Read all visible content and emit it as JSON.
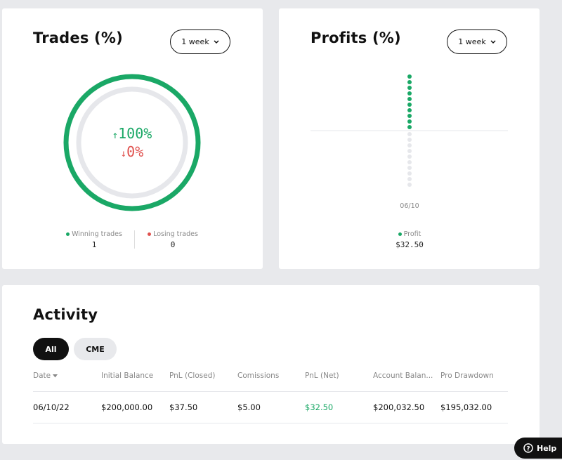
{
  "trades": {
    "title": "Trades (%)",
    "period": "1 week",
    "win_pct": "100%",
    "lose_pct": "0%",
    "legend": [
      {
        "label": "Winning trades",
        "value": 1
      },
      {
        "label": "Losing trades",
        "value": 0
      }
    ]
  },
  "profits": {
    "title": "Profits (%)",
    "period": "1 week",
    "date": "06/10",
    "legend": {
      "label": "Profit",
      "value": "$32.50"
    }
  },
  "activity": {
    "title": "Activity",
    "tabs": [
      "All",
      "CME"
    ],
    "columns": [
      "Date",
      "Initial Balance",
      "PnL (Closed)",
      "Comissions",
      "PnL (Net)",
      "Account Balan...",
      "Pro Drawdown"
    ],
    "rows": [
      [
        "06/10/22",
        "$200,000.00",
        "$37.50",
        "$5.00",
        "$32.50",
        "$200,032.50",
        "$195,032.00"
      ]
    ]
  },
  "help": "Help"
}
